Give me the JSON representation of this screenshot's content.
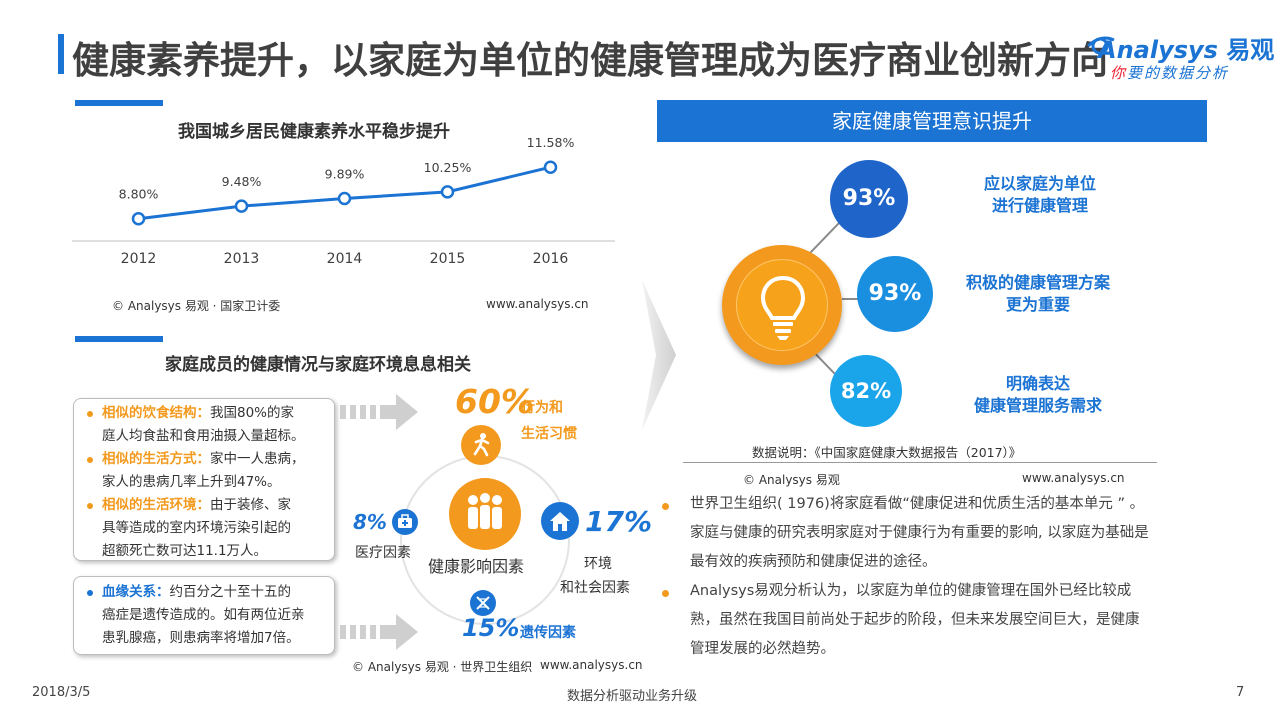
{
  "page_title": "健康素养提升，以家庭为单位的健康管理成为医疗商业创新方向",
  "logo": {
    "brand_en": "Analysys",
    "brand_cn": "易观",
    "slogan_red": "你",
    "slogan_rest": "要的数据分析"
  },
  "left_chart": {
    "title": "我国城乡居民健康素养水平稳步提升",
    "source": "© Analysys 易观 · 国家卫计委",
    "url": "www.analysys.cn"
  },
  "chart_data": {
    "type": "line",
    "title": "我国城乡居民健康素养水平稳步提升",
    "xlabel": "",
    "ylabel": "",
    "categories": [
      "2012",
      "2013",
      "2014",
      "2015",
      "2016"
    ],
    "values": [
      8.8,
      9.48,
      9.89,
      10.25,
      11.58
    ],
    "value_labels": [
      "8.80%",
      "9.48%",
      "9.89%",
      "10.25%",
      "11.58%"
    ],
    "ylim": [
      0,
      12
    ],
    "grid": false,
    "color": "#1b73d3"
  },
  "family_section": {
    "title": "家庭成员的健康情况与家庭环境息息相关",
    "items": [
      {
        "head": "相似的饮食结构：",
        "body_lines": [
          "我国80%的家",
          "庭人均食盐和食用油摄入量超标。"
        ]
      },
      {
        "head": "相似的生活方式：",
        "body_lines": [
          "家中一人患病，",
          "家人的患病几率上升到47%。"
        ]
      },
      {
        "head": "相似的生活环境：",
        "body_lines": [
          "由于装修、家",
          "具等造成的室内环境污染引起的",
          "超额死亡数可达11.1万人。"
        ]
      }
    ],
    "blood": {
      "head": "血缘关系：",
      "body_lines": [
        "约百分之十至十五的",
        "癌症是遗传造成的。如有两位近亲",
        "患乳腺癌，则患病率将增加7倍。"
      ]
    },
    "center_label": "健康影响因素",
    "factors": {
      "behavior": {
        "pct": "60%",
        "label_lines": [
          "行为和",
          "生活习惯"
        ]
      },
      "medical": {
        "pct": "8%",
        "label": "医疗因素"
      },
      "environment": {
        "pct": "17%",
        "label_lines": [
          "环境",
          "和社会因素"
        ]
      },
      "genetic": {
        "pct": "15%",
        "label": "遗传因素"
      }
    },
    "source": "© Analysys 易观 · 世界卫生组织",
    "url": "www.analysys.cn"
  },
  "right_panel": {
    "banner": "家庭健康管理意识提升",
    "stats": [
      {
        "pct": "93%",
        "label_lines": [
          "应以家庭为单位",
          "进行健康管理"
        ],
        "color": "#1f64c9"
      },
      {
        "pct": "93%",
        "label_lines": [
          "积极的健康管理方案",
          "更为重要"
        ],
        "color": "#1a8fe0"
      },
      {
        "pct": "82%",
        "label_lines": [
          "明确表达",
          "健康管理服务需求"
        ],
        "color": "#1aa4ea"
      }
    ],
    "note": "数据说明：《中国家庭健康大数据报告（2017）》",
    "source": "© Analysys 易观",
    "url": "www.analysys.cn"
  },
  "paragraphs": [
    {
      "lines": [
        "世界卫生组织( 1976)将家庭看做“健康促进和优质生活的基本单元 ” 。",
        "家庭与健康的研究表明家庭对于健康行为有重要的影响, 以家庭为基础是",
        "最有效的疾病预防和健康促进的途径。"
      ]
    },
    {
      "lines": [
        "Analysys易观分析认为，以家庭为单位的健康管理在国外已经比较成",
        "熟，虽然在我国目前尚处于起步的阶段，但未来发展空间巨大，是健康",
        "管理发展的必然趋势。"
      ]
    }
  ],
  "footer": {
    "date": "2018/3/5",
    "center": "数据分析驱动业务升级",
    "page": "7"
  }
}
